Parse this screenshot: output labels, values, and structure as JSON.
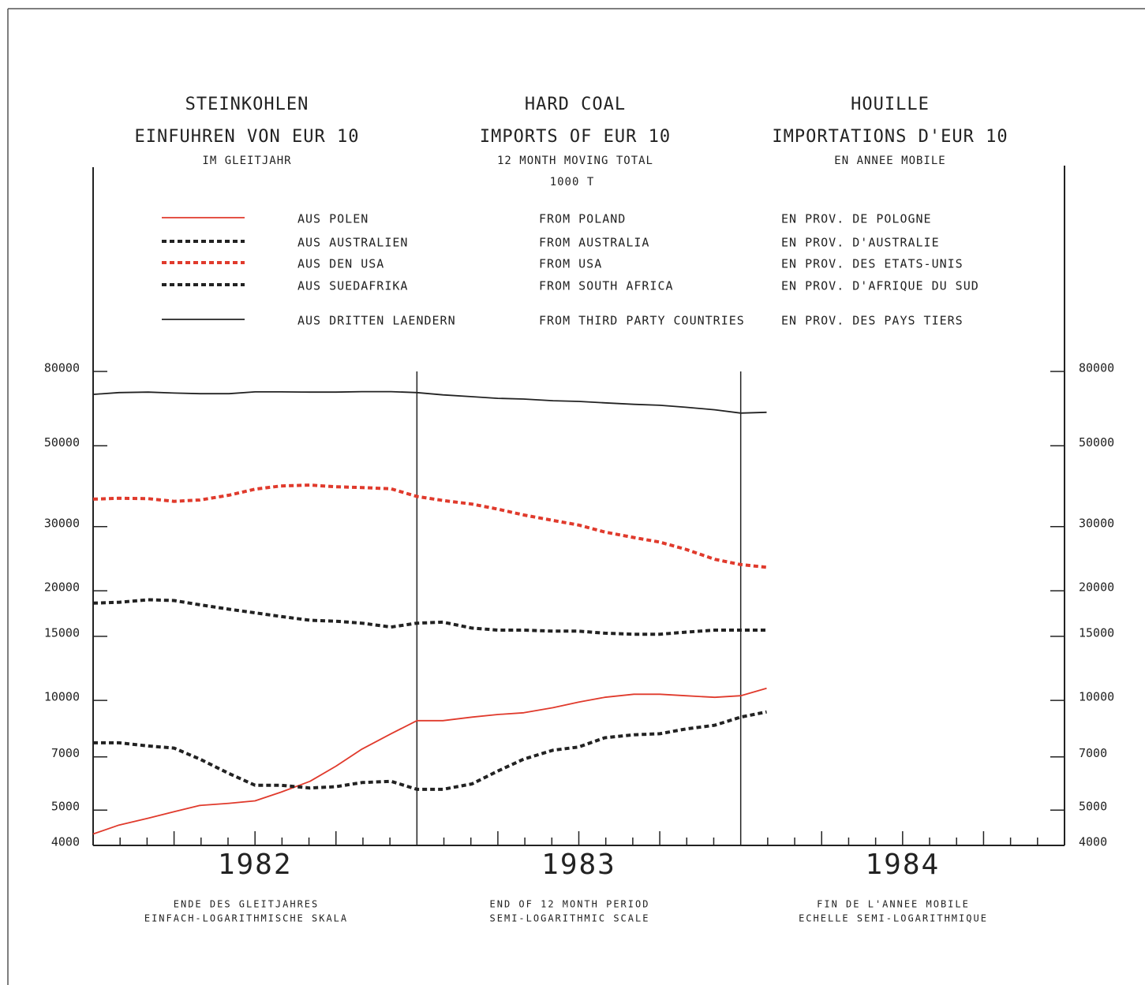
{
  "chart_data": {
    "type": "line",
    "titles": [
      {
        "title": "STEINKOHLEN",
        "subtitle": "EINFUHREN VON EUR 10",
        "note": "IM GLEITJAHR"
      },
      {
        "title": "HARD COAL",
        "subtitle": "IMPORTS OF EUR 10",
        "note": "12 MONTH MOVING TOTAL"
      },
      {
        "title": "HOUILLE",
        "subtitle": "IMPORTATIONS D'EUR 10",
        "note": "EN ANNEE MOBILE"
      }
    ],
    "unit": "1000 T",
    "x_label": [
      [
        "ENDE DES GLEITJAHRES",
        "EINFACH-LOGARITHMISCHE SKALA"
      ],
      [
        "END OF 12 MONTH PERIOD",
        "SEMI-LOGARITHMIC SCALE"
      ],
      [
        "FIN DE L'ANNEE MOBILE",
        "ECHELLE SEMI-LOGARITHMIQUE"
      ]
    ],
    "x": [
      1982.0,
      1982.08,
      1982.17,
      1982.25,
      1982.33,
      1982.42,
      1982.5,
      1982.58,
      1982.67,
      1982.75,
      1982.83,
      1982.92,
      1983.0,
      1983.08,
      1983.17,
      1983.25,
      1983.33,
      1983.42,
      1983.5,
      1983.58,
      1983.67,
      1983.75,
      1983.83,
      1983.92,
      1984.0,
      1984.08
    ],
    "xlim": [
      1982,
      1985
    ],
    "xticks": [
      {
        "value": 1982.5,
        "label": "1982"
      },
      {
        "value": 1983.5,
        "label": "1983"
      },
      {
        "value": 1984.5,
        "label": "1984"
      }
    ],
    "ylim": [
      4000,
      80000
    ],
    "yticks": [
      4000,
      5000,
      7000,
      10000,
      15000,
      20000,
      30000,
      50000,
      80000
    ],
    "log_scale": true,
    "series": [
      {
        "name": "AUS POLEN",
        "name_en": "FROM POLAND",
        "name_fr": "EN PROV. DE POLOGNE",
        "color": "#e03a2c",
        "dash": "solid",
        "values": [
          4300,
          4550,
          4750,
          4950,
          5150,
          5220,
          5300,
          5600,
          6000,
          6600,
          7350,
          8100,
          8800,
          8800,
          9000,
          9150,
          9250,
          9550,
          9900,
          10200,
          10400,
          10400,
          10300,
          10200,
          10300,
          10800
        ]
      },
      {
        "name": "AUS AUSTRALIEN",
        "name_en": "FROM AUSTRALIA",
        "name_fr": "EN PROV. D'AUSTRALIE",
        "color": "#222222",
        "dash": "dotted",
        "values": [
          18500,
          18600,
          18900,
          18800,
          18300,
          17800,
          17400,
          17000,
          16600,
          16500,
          16300,
          15900,
          16300,
          16400,
          15800,
          15600,
          15600,
          15500,
          15500,
          15300,
          15200,
          15200,
          15400,
          15600,
          15600,
          15600
        ]
      },
      {
        "name": "AUS DEN USA",
        "name_en": "FROM USA",
        "name_fr": "EN PROV. DES ETATS-UNIS",
        "color": "#e03a2c",
        "dash": "dotted",
        "values": [
          35700,
          35900,
          35800,
          35200,
          35500,
          36600,
          38000,
          38800,
          39000,
          38600,
          38400,
          38100,
          36300,
          35400,
          34600,
          33500,
          32300,
          31200,
          30300,
          29000,
          28000,
          27200,
          26000,
          24400,
          23600,
          23200
        ]
      },
      {
        "name": "AUS SUEDAFRIKA",
        "name_en": "FROM SOUTH AFRICA",
        "name_fr": "EN PROV. D'AFRIQUE DU SUD",
        "color": "#222222",
        "dash": "dotted",
        "values": [
          7650,
          7650,
          7500,
          7400,
          6900,
          6300,
          5850,
          5850,
          5750,
          5800,
          5950,
          6000,
          5700,
          5700,
          5900,
          6400,
          6900,
          7300,
          7450,
          7900,
          8050,
          8100,
          8350,
          8550,
          9000,
          9300
        ]
      },
      {
        "name": "AUS DRITTEN LAENDERN",
        "name_en": "FROM THIRD PARTY COUNTRIES",
        "name_fr": "EN PROV. DES PAYS TIERS",
        "color": "#222222",
        "dash": "solid",
        "values": [
          69200,
          70000,
          70200,
          69800,
          69500,
          69500,
          70300,
          70300,
          70200,
          70200,
          70400,
          70400,
          70000,
          69000,
          68200,
          67500,
          67200,
          66500,
          66200,
          65600,
          65000,
          64600,
          63800,
          62800,
          61500,
          61800
        ]
      }
    ]
  }
}
